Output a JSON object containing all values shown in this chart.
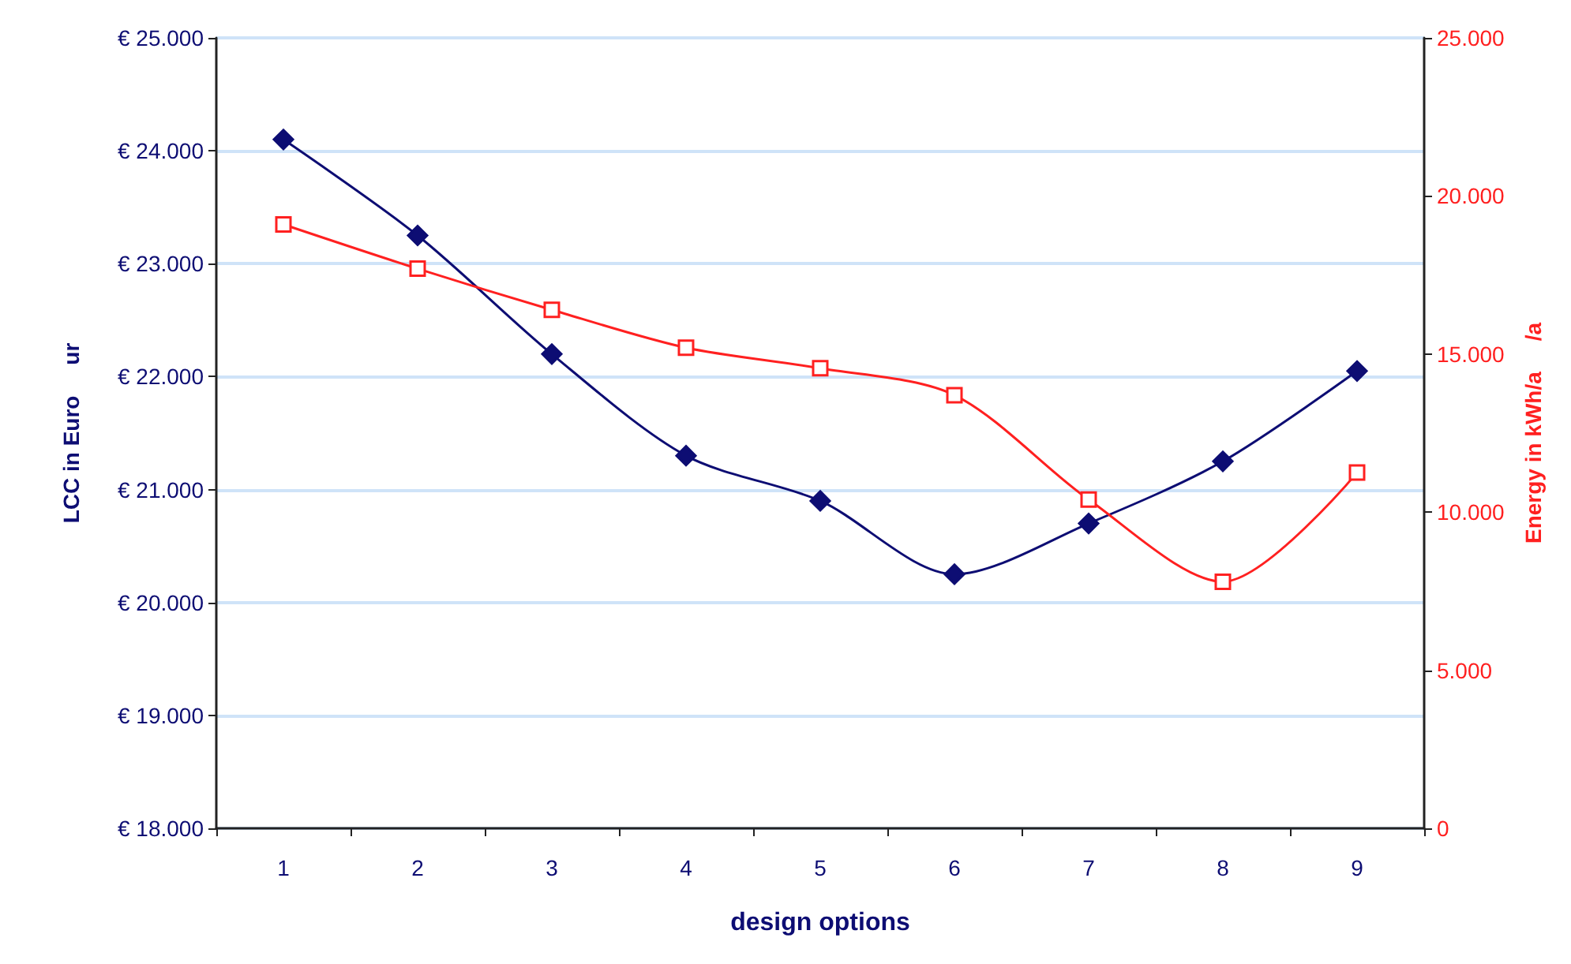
{
  "chart_data": {
    "type": "line",
    "xlabel": "design options",
    "ylabel": "LCC in Euro     ur",
    "y2label": "Energy in kWh/a     /a",
    "categories": [
      "1",
      "2",
      "3",
      "4",
      "5",
      "6",
      "7",
      "8",
      "9"
    ],
    "series": [
      {
        "color": "#0d0d73",
        "marker": "diamond",
        "values": [
          24100,
          23250,
          22200,
          21300,
          20900,
          20250,
          20700,
          21250,
          22050
        ]
      },
      {
        "color": "#ff2020",
        "marker": "square",
        "axis": "y2",
        "values": [
          19100,
          17700,
          16400,
          15200,
          14550,
          13700,
          10400,
          7800,
          11250
        ]
      }
    ],
    "ylim": [
      18000,
      25000
    ],
    "yticks": [
      {
        "value": 18000,
        "label": "€ 18.000"
      },
      {
        "value": 19000,
        "label": "€ 19.000"
      },
      {
        "value": 20000,
        "label": "€ 20.000"
      },
      {
        "value": 21000,
        "label": "€ 21.000"
      },
      {
        "value": 22000,
        "label": "€ 22.000"
      },
      {
        "value": 23000,
        "label": "€ 23.000"
      },
      {
        "value": 24000,
        "label": "€ 24.000"
      },
      {
        "value": 25000,
        "label": "€ 25.000"
      }
    ],
    "y2lim": [
      0,
      25000
    ],
    "y2ticks": [
      0,
      {
        "value": 5000,
        "label": "5.000"
      },
      {
        "value": 10000,
        "label": "10.000"
      },
      {
        "value": 15000,
        "label": "15.000"
      },
      {
        "value": 20000,
        "label": "20.000"
      },
      {
        "value": 25000,
        "label": "25.000"
      }
    ],
    "grid": "y"
  }
}
